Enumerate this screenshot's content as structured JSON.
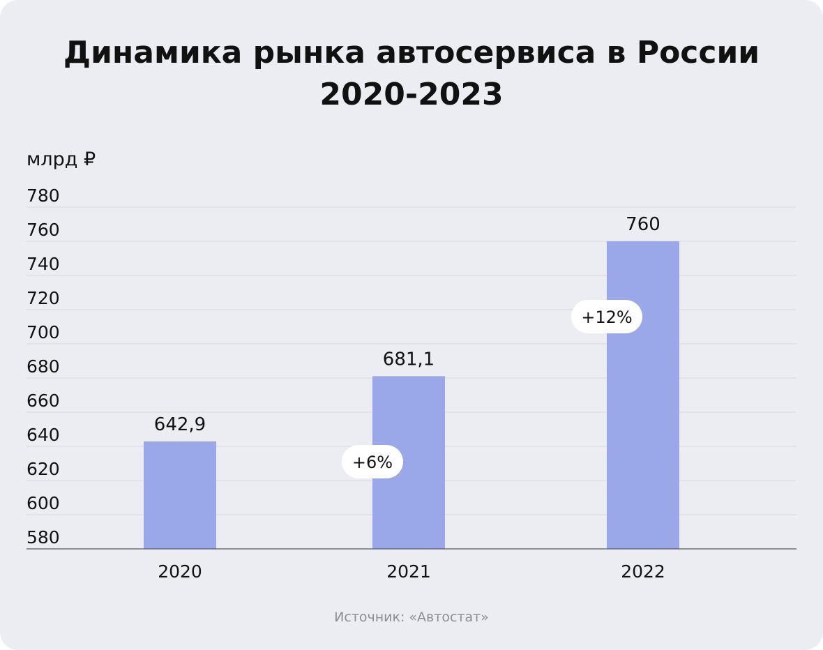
{
  "title": {
    "line1": "Динамика рынка автосервиса в России",
    "line2": "2020-2023"
  },
  "source": "Источник: «Автостат»",
  "colors": {
    "background": "#ecedf2",
    "bar": "#9aa7e8",
    "grid": "#d7d8de",
    "axis": "#6d6e74",
    "pill": "#ffffff"
  },
  "chart_data": {
    "type": "bar",
    "ylabel": "млрд ₽",
    "ylim": [
      580,
      780
    ],
    "yticks": [
      "780",
      "760",
      "740",
      "720",
      "700",
      "680",
      "660",
      "640",
      "620",
      "600",
      "580"
    ],
    "grid": true,
    "categories": [
      "2020",
      "2021",
      "2022"
    ],
    "values": [
      642.9,
      681.1,
      760
    ],
    "value_labels": [
      "642,9",
      "681,1",
      "760"
    ],
    "annotations": [
      {
        "category": "2021",
        "text": "+6%"
      },
      {
        "category": "2022",
        "text": "+12%"
      }
    ]
  }
}
